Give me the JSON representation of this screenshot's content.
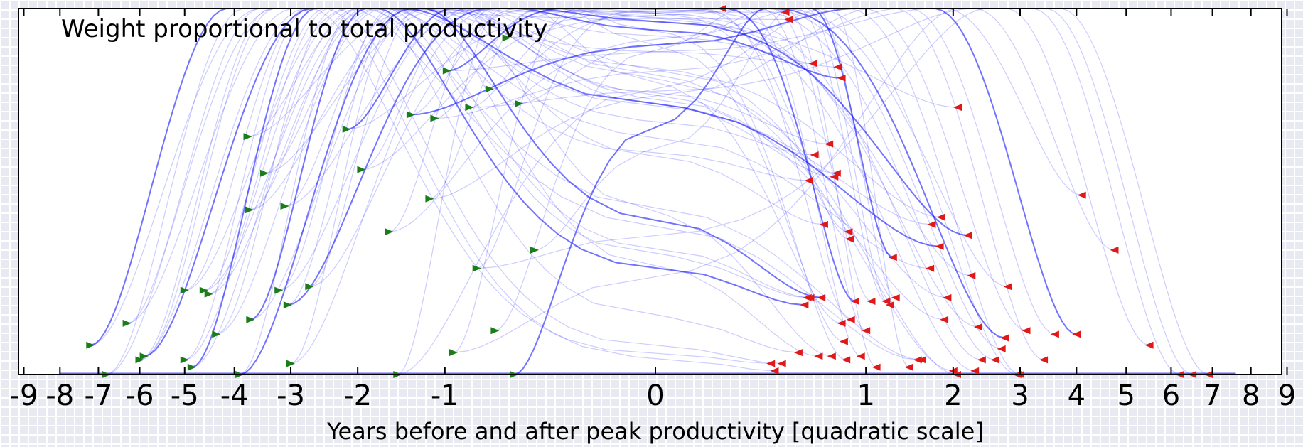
{
  "chart_data": {
    "type": "line",
    "title": "",
    "annotation": "Weight proportional to total productivity",
    "xlabel": "Years before and after peak productivity [quadratic scale]",
    "ylabel": "",
    "xlim": [
      -9,
      9
    ],
    "x_scale": "quadratic",
    "x_ticks": [
      "-9",
      "-8",
      "-7",
      "-6",
      "-5",
      "-4",
      "-3",
      "-2",
      "-1",
      "0",
      "1",
      "2",
      "3",
      "4",
      "5",
      "6",
      "7",
      "8",
      "9"
    ],
    "ylim": [
      0,
      1
    ],
    "grid": false,
    "colors": {
      "curves": "#0000ff",
      "start_markers": "#1a7d1a",
      "end_markers": "#e01818",
      "plot_background": "#ffffff",
      "figure_background": "#e9e9f1"
    },
    "series": [
      {
        "marker": "start",
        "color": "#1a7d1a",
        "points": [
          [
            -7.2,
            0.08
          ],
          [
            -6.8,
            0.0
          ],
          [
            -6.3,
            0.14
          ],
          [
            -6.0,
            0.04
          ],
          [
            -5.9,
            0.05
          ],
          [
            -5.0,
            0.23
          ],
          [
            -5.0,
            0.04
          ],
          [
            -4.85,
            0.02
          ],
          [
            -4.6,
            0.23
          ],
          [
            -4.5,
            0.22
          ],
          [
            -4.35,
            0.11
          ],
          [
            -3.9,
            0.0
          ],
          [
            -3.75,
            0.65
          ],
          [
            -3.72,
            0.45
          ],
          [
            -3.7,
            0.15
          ],
          [
            -3.45,
            0.55
          ],
          [
            -3.2,
            0.23
          ],
          [
            -3.1,
            0.46
          ],
          [
            -3.05,
            0.19
          ],
          [
            -3.0,
            0.03
          ],
          [
            -2.7,
            0.24
          ],
          [
            -2.15,
            0.67
          ],
          [
            -1.95,
            0.56
          ],
          [
            -1.6,
            0.39
          ],
          [
            -1.5,
            0.0
          ],
          [
            -1.35,
            0.71
          ],
          [
            -1.15,
            0.48
          ],
          [
            -1.1,
            0.7
          ],
          [
            -0.98,
            0.83
          ],
          [
            -0.92,
            0.06
          ],
          [
            -0.78,
            0.73
          ],
          [
            -0.72,
            0.29
          ],
          [
            -0.62,
            0.78
          ],
          [
            -0.58,
            0.12
          ],
          [
            -0.5,
            0.92
          ],
          [
            -0.45,
            0.0
          ],
          [
            -0.42,
            0.74
          ],
          [
            -0.33,
            0.34
          ]
        ]
      },
      {
        "marker": "end",
        "color": "#e01818",
        "points": [
          [
            0.1,
            1.0
          ],
          [
            0.3,
            0.03
          ],
          [
            0.32,
            0.01
          ],
          [
            0.36,
            0.03
          ],
          [
            0.38,
            0.99
          ],
          [
            0.4,
            0.97
          ],
          [
            0.46,
            0.06
          ],
          [
            0.5,
            0.19
          ],
          [
            0.52,
            0.21
          ],
          [
            0.53,
            0.53
          ],
          [
            0.54,
            0.21
          ],
          [
            0.56,
            0.85
          ],
          [
            0.57,
            0.6
          ],
          [
            0.6,
            0.05
          ],
          [
            0.62,
            0.21
          ],
          [
            0.64,
            0.41
          ],
          [
            0.68,
            0.63
          ],
          [
            0.7,
            0.05
          ],
          [
            0.72,
            0.54
          ],
          [
            0.74,
            0.55
          ],
          [
            0.75,
            0.84
          ],
          [
            0.78,
            0.81
          ],
          [
            0.78,
            0.14
          ],
          [
            0.8,
            0.09
          ],
          [
            0.82,
            0.04
          ],
          [
            0.84,
            0.39
          ],
          [
            0.85,
            0.37
          ],
          [
            0.86,
            0.15
          ],
          [
            0.9,
            0.2
          ],
          [
            0.95,
            0.05
          ],
          [
            1.0,
            0.12
          ],
          [
            1.05,
            0.2
          ],
          [
            1.1,
            0.02
          ],
          [
            1.2,
            0.2
          ],
          [
            1.24,
            0.19
          ],
          [
            1.27,
            0.32
          ],
          [
            1.3,
            0.21
          ],
          [
            1.45,
            0.02
          ],
          [
            1.55,
            0.04
          ],
          [
            1.6,
            0.04
          ],
          [
            1.7,
            0.29
          ],
          [
            1.72,
            0.41
          ],
          [
            1.82,
            0.35
          ],
          [
            1.84,
            0.43
          ],
          [
            1.88,
            0.15
          ],
          [
            1.92,
            0.21
          ],
          [
            2.0,
            0.01
          ],
          [
            2.05,
            0.0
          ],
          [
            2.06,
            0.73
          ],
          [
            2.2,
            0.38
          ],
          [
            2.25,
            0.27
          ],
          [
            2.3,
            0.01
          ],
          [
            2.35,
            0.13
          ],
          [
            2.4,
            0.04
          ],
          [
            2.6,
            0.04
          ],
          [
            2.7,
            0.07
          ],
          [
            2.75,
            0.1
          ],
          [
            2.8,
            0.24
          ],
          [
            2.95,
            0.0
          ],
          [
            3.0,
            0.0
          ],
          [
            3.1,
            0.12
          ],
          [
            3.4,
            0.04
          ],
          [
            3.6,
            0.11
          ],
          [
            4.0,
            0.11
          ],
          [
            4.1,
            0.49
          ],
          [
            4.75,
            0.34
          ],
          [
            5.5,
            0.08
          ],
          [
            6.2,
            0.0
          ],
          [
            6.5,
            0.0
          ],
          [
            6.9,
            0.0
          ]
        ]
      }
    ]
  }
}
